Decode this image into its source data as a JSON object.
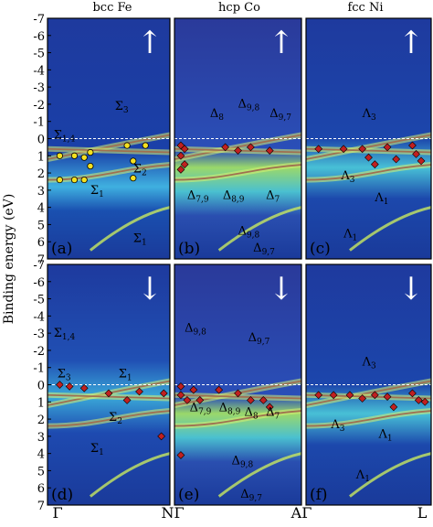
{
  "chart_data": {
    "type": "heatmap",
    "ylabel": "Binding energy (eV)",
    "ylim": [
      7,
      -7
    ],
    "yticks": [
      -7,
      -6,
      -5,
      -4,
      -3,
      -2,
      -1,
      0,
      1,
      2,
      3,
      4,
      5,
      6,
      7
    ],
    "ytick_labels": [
      "-7",
      "-6",
      "-5",
      "-4",
      "-3",
      "-2",
      "-1",
      "0",
      "1",
      "2",
      "3",
      "4",
      "5",
      "6",
      "7"
    ],
    "columns": [
      "bcc Fe",
      "hcp Co",
      "fcc Ni"
    ],
    "xtick_labels": [
      "Γ",
      "NΓ",
      "AΓ",
      "L"
    ],
    "spin_arrows": [
      "↑",
      "↓"
    ],
    "panels": [
      {
        "id": "a",
        "label": "(a)",
        "material": "bcc Fe",
        "spin": "up",
        "annotations": [
          "Σ1,4",
          "Σ3",
          "Σ2",
          "Σ1",
          "Σ1"
        ],
        "points": [
          [
            0.1,
            1.0
          ],
          [
            0.1,
            2.4
          ],
          [
            0.22,
            1.0
          ],
          [
            0.22,
            2.4
          ],
          [
            0.3,
            1.1
          ],
          [
            0.3,
            2.4
          ],
          [
            0.35,
            0.8
          ],
          [
            0.35,
            1.6
          ],
          [
            0.65,
            0.4
          ],
          [
            0.7,
            1.3
          ],
          [
            0.7,
            2.3
          ],
          [
            0.8,
            0.4
          ]
        ]
      },
      {
        "id": "b",
        "label": "(b)",
        "material": "hcp Co",
        "spin": "up",
        "annotations": [
          "Δ8",
          "Δ9,8",
          "Δ9,7",
          "Δ7,9",
          "Δ8,9",
          "Δ7",
          "Δ9,8",
          "Δ9,7"
        ],
        "points": [
          [
            0.05,
            0.4
          ],
          [
            0.08,
            0.6
          ],
          [
            0.05,
            1.0
          ],
          [
            0.08,
            1.5
          ],
          [
            0.05,
            1.8
          ],
          [
            0.4,
            0.5
          ],
          [
            0.5,
            0.7
          ],
          [
            0.6,
            0.5
          ],
          [
            0.75,
            0.7
          ]
        ]
      },
      {
        "id": "c",
        "label": "(c)",
        "material": "fcc Ni",
        "spin": "up",
        "annotations": [
          "Λ3",
          "Λ3",
          "Λ1",
          "Λ1"
        ],
        "points": [
          [
            0.1,
            0.6
          ],
          [
            0.3,
            0.6
          ],
          [
            0.45,
            0.6
          ],
          [
            0.5,
            1.1
          ],
          [
            0.55,
            1.5
          ],
          [
            0.65,
            0.5
          ],
          [
            0.72,
            1.2
          ],
          [
            0.85,
            0.4
          ],
          [
            0.88,
            0.9
          ],
          [
            0.92,
            1.3
          ]
        ]
      },
      {
        "id": "d",
        "label": "(d)",
        "material": "bcc Fe",
        "spin": "down",
        "annotations": [
          "Σ1,4",
          "Σ3",
          "Σ1",
          "Σ2",
          "Σ1"
        ],
        "points": [
          [
            0.1,
            0.0
          ],
          [
            0.18,
            0.1
          ],
          [
            0.3,
            0.2
          ],
          [
            0.5,
            0.5
          ],
          [
            0.65,
            0.9
          ],
          [
            0.75,
            0.4
          ],
          [
            0.95,
            0.5
          ],
          [
            0.93,
            3.0
          ]
        ]
      },
      {
        "id": "e",
        "label": "(e)",
        "material": "hcp Co",
        "spin": "down",
        "annotations": [
          "Δ9,8",
          "Δ9,7",
          "Δ7,9",
          "Δ8,9",
          "Δ8",
          "Δ7",
          "Δ9,8",
          "Δ9,7"
        ],
        "points": [
          [
            0.05,
            0.1
          ],
          [
            0.05,
            0.6
          ],
          [
            0.1,
            0.9
          ],
          [
            0.15,
            0.3
          ],
          [
            0.2,
            0.9
          ],
          [
            0.35,
            0.3
          ],
          [
            0.5,
            0.5
          ],
          [
            0.6,
            0.9
          ],
          [
            0.7,
            0.9
          ],
          [
            0.75,
            1.3
          ],
          [
            0.05,
            4.1
          ]
        ]
      },
      {
        "id": "f",
        "label": "(f)",
        "material": "fcc Ni",
        "spin": "down",
        "annotations": [
          "Λ3",
          "Λ3",
          "Λ1",
          "Λ1"
        ],
        "points": [
          [
            0.1,
            0.6
          ],
          [
            0.22,
            0.6
          ],
          [
            0.35,
            0.6
          ],
          [
            0.45,
            0.8
          ],
          [
            0.55,
            0.6
          ],
          [
            0.65,
            0.7
          ],
          [
            0.7,
            1.3
          ],
          [
            0.85,
            0.5
          ],
          [
            0.9,
            0.9
          ],
          [
            0.95,
            1.0
          ]
        ]
      }
    ]
  }
}
